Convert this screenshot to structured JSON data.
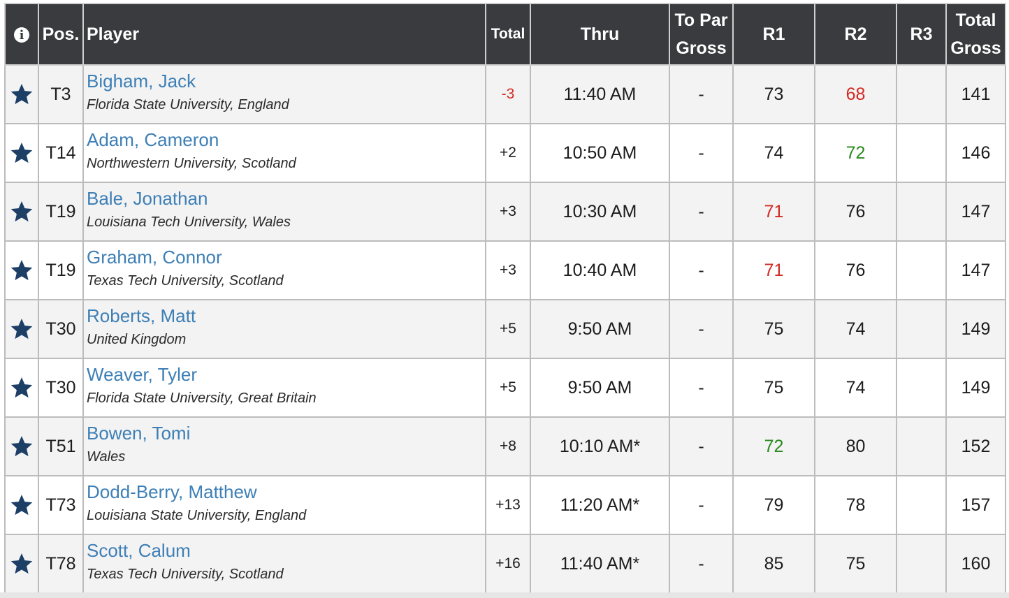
{
  "header": {
    "info_icon": "info-icon",
    "pos": "Pos.",
    "player": "Player",
    "total": "Total",
    "thru": "Thru",
    "to_par_gross_1": "To Par",
    "to_par_gross_2": "Gross",
    "r1": "R1",
    "r2": "R2",
    "r3": "R3",
    "total_gross_1": "Total",
    "total_gross_2": "Gross"
  },
  "colors": {
    "red": "#d12a23",
    "green": "#2a8a1e",
    "link": "#3d7fb6",
    "star": "#1d3f66",
    "header_bg": "#3a3b3f"
  },
  "rows": [
    {
      "pos": "T3",
      "name": "Bigham, Jack",
      "school": "Florida State University, England",
      "total": "-3",
      "total_color": "red",
      "thru": "11:40 AM",
      "to_par": "-",
      "r1": "73",
      "r1_color": "",
      "r2": "68",
      "r2_color": "red",
      "r3": "",
      "gross": "141"
    },
    {
      "pos": "T14",
      "name": "Adam, Cameron",
      "school": "Northwestern University, Scotland",
      "total": "+2",
      "total_color": "",
      "thru": "10:50 AM",
      "to_par": "-",
      "r1": "74",
      "r1_color": "",
      "r2": "72",
      "r2_color": "green",
      "r3": "",
      "gross": "146"
    },
    {
      "pos": "T19",
      "name": "Bale, Jonathan",
      "school": "Louisiana Tech University, Wales",
      "total": "+3",
      "total_color": "",
      "thru": "10:30 AM",
      "to_par": "-",
      "r1": "71",
      "r1_color": "red",
      "r2": "76",
      "r2_color": "",
      "r3": "",
      "gross": "147"
    },
    {
      "pos": "T19",
      "name": "Graham, Connor",
      "school": "Texas Tech University, Scotland",
      "total": "+3",
      "total_color": "",
      "thru": "10:40 AM",
      "to_par": "-",
      "r1": "71",
      "r1_color": "red",
      "r2": "76",
      "r2_color": "",
      "r3": "",
      "gross": "147"
    },
    {
      "pos": "T30",
      "name": "Roberts, Matt",
      "school": "United Kingdom",
      "total": "+5",
      "total_color": "",
      "thru": "9:50 AM",
      "to_par": "-",
      "r1": "75",
      "r1_color": "",
      "r2": "74",
      "r2_color": "",
      "r3": "",
      "gross": "149"
    },
    {
      "pos": "T30",
      "name": "Weaver, Tyler",
      "school": "Florida State University, Great Britain",
      "total": "+5",
      "total_color": "",
      "thru": "9:50 AM",
      "to_par": "-",
      "r1": "75",
      "r1_color": "",
      "r2": "74",
      "r2_color": "",
      "r3": "",
      "gross": "149"
    },
    {
      "pos": "T51",
      "name": "Bowen, Tomi",
      "school": "Wales",
      "total": "+8",
      "total_color": "",
      "thru": "10:10 AM*",
      "to_par": "-",
      "r1": "72",
      "r1_color": "green",
      "r2": "80",
      "r2_color": "",
      "r3": "",
      "gross": "152"
    },
    {
      "pos": "T73",
      "name": "Dodd-Berry, Matthew",
      "school": "Louisiana State University, England",
      "total": "+13",
      "total_color": "",
      "thru": "11:20 AM*",
      "to_par": "-",
      "r1": "79",
      "r1_color": "",
      "r2": "78",
      "r2_color": "",
      "r3": "",
      "gross": "157"
    },
    {
      "pos": "T78",
      "name": "Scott, Calum",
      "school": "Texas Tech University, Scotland",
      "total": "+16",
      "total_color": "",
      "thru": "11:40 AM*",
      "to_par": "-",
      "r1": "85",
      "r1_color": "",
      "r2": "75",
      "r2_color": "",
      "r3": "",
      "gross": "160"
    }
  ]
}
